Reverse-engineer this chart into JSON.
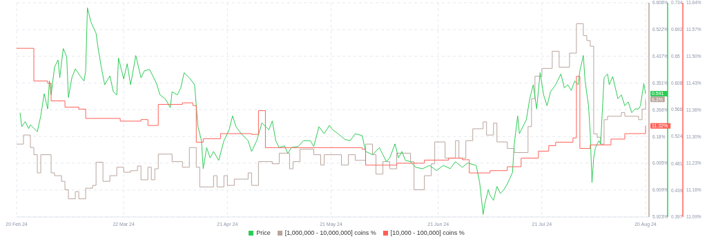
{
  "chart_data": {
    "type": "line",
    "xlim": [
      "2024-02-20",
      "2024-08-21"
    ],
    "xticks": [
      {
        "value": "2024-02-20",
        "label": "20 Feb 24"
      },
      {
        "value": "2024-03-22",
        "label": "22 Mar 24"
      },
      {
        "value": "2024-04-21",
        "label": "21 Apr 24"
      },
      {
        "value": "2024-05-21",
        "label": "21 May 24"
      },
      {
        "value": "2024-06-21",
        "label": "21 Jun 24"
      },
      {
        "value": "2024-07-21",
        "label": "21 Jul 24"
      },
      {
        "value": "2024-08-20",
        "label": "20 Aug 24"
      }
    ],
    "ylim": [
      5.923,
      6.608
    ],
    "yticks": [
      {
        "value": 5.923,
        "label": "5.923%"
      },
      {
        "value": 6.009,
        "label": "6.009%"
      },
      {
        "value": 6.095,
        "label": "6.095%"
      },
      {
        "value": 6.18,
        "label": "6.18%"
      },
      {
        "value": 6.266,
        "label": "6.266%"
      },
      {
        "value": 6.351,
        "label": "6.351%"
      },
      {
        "value": 6.437,
        "label": "6.437%"
      },
      {
        "value": 6.522,
        "label": "6.522%"
      },
      {
        "value": 6.608,
        "label": "6.608%"
      }
    ],
    "y2lim": [
      0.397,
      0.734
    ],
    "y2ticks": [
      0.397,
      0.439,
      0.481,
      0.524,
      0.566,
      0.608,
      0.65,
      0.692,
      0.734
    ],
    "y3lim": [
      11.09,
      11.64
    ],
    "y3ticks": [
      {
        "value": 11.09,
        "label": "11.09%"
      },
      {
        "value": 11.159,
        "label": "11.16%"
      },
      {
        "value": 11.228,
        "label": "11.23%"
      },
      {
        "value": 11.296,
        "label": "11.30%"
      },
      {
        "value": 11.365,
        "label": "11.36%"
      },
      {
        "value": 11.434,
        "label": "11.43%"
      },
      {
        "value": 11.503,
        "label": "11.50%"
      },
      {
        "value": 11.571,
        "label": "11.57%"
      },
      {
        "value": 11.64,
        "label": "11.64%"
      }
    ],
    "grid": true,
    "legend": "bottom",
    "series": [
      {
        "name": "[1,000,000 - 10,000,000] coins %",
        "color": "#b8a49c",
        "type": "step",
        "axis": "y",
        "x": [
          "2024-02-20",
          "2024-02-22",
          "2024-02-24",
          "2024-02-25",
          "2024-02-26",
          "2024-02-27",
          "2024-03-01",
          "2024-03-02",
          "2024-03-04",
          "2024-03-05",
          "2024-03-06",
          "2024-03-08",
          "2024-03-09",
          "2024-03-11",
          "2024-03-13",
          "2024-03-14",
          "2024-03-16",
          "2024-03-18",
          "2024-03-20",
          "2024-03-22",
          "2024-03-24",
          "2024-03-26",
          "2024-03-27",
          "2024-03-29",
          "2024-03-30",
          "2024-03-31",
          "2024-04-01",
          "2024-04-05",
          "2024-04-08",
          "2024-04-10",
          "2024-04-12",
          "2024-04-13",
          "2024-04-17",
          "2024-04-18",
          "2024-04-20",
          "2024-04-21",
          "2024-04-23",
          "2024-04-27",
          "2024-04-28",
          "2024-04-30",
          "2024-05-04",
          "2024-05-06",
          "2024-05-09",
          "2024-05-10",
          "2024-05-12",
          "2024-05-16",
          "2024-05-18",
          "2024-05-19",
          "2024-05-24",
          "2024-05-26",
          "2024-05-28",
          "2024-05-31",
          "2024-06-02",
          "2024-06-03",
          "2024-06-05",
          "2024-06-07",
          "2024-06-09",
          "2024-06-13",
          "2024-06-14",
          "2024-06-17",
          "2024-06-19",
          "2024-06-20",
          "2024-06-23",
          "2024-06-26",
          "2024-06-27",
          "2024-06-29",
          "2024-07-01",
          "2024-07-04",
          "2024-07-05",
          "2024-07-07",
          "2024-07-08",
          "2024-07-11",
          "2024-07-13",
          "2024-07-17",
          "2024-07-18",
          "2024-07-19",
          "2024-07-21",
          "2024-07-24",
          "2024-07-26",
          "2024-07-29",
          "2024-07-31",
          "2024-08-02",
          "2024-08-03",
          "2024-08-04",
          "2024-08-05",
          "2024-08-06",
          "2024-08-07",
          "2024-08-08",
          "2024-08-09",
          "2024-08-13",
          "2024-08-14",
          "2024-08-18",
          "2024-08-19",
          "2024-08-20"
        ],
        "values": [
          6.156,
          6.185,
          6.145,
          6.122,
          6.064,
          6.122,
          6.064,
          6.055,
          6.037,
          6.01,
          5.981,
          6.004,
          5.981,
          6.015,
          6.024,
          6.098,
          6.037,
          6.055,
          6.082,
          6.066,
          6.071,
          6.086,
          6.042,
          6.082,
          6.042,
          6.077,
          6.124,
          6.1,
          6.082,
          6.145,
          6.082,
          6.019,
          6.055,
          6.019,
          6.055,
          6.024,
          6.044,
          6.064,
          6.024,
          6.1,
          6.093,
          6.127,
          6.077,
          6.1,
          6.14,
          6.122,
          6.089,
          6.122,
          6.089,
          6.122,
          6.104,
          6.156,
          6.122,
          6.06,
          6.1,
          6.077,
          6.127,
          6.1,
          6.01,
          6.055,
          6.093,
          6.163,
          6.111,
          6.167,
          6.111,
          6.167,
          6.205,
          6.227,
          6.185,
          6.223,
          6.163,
          6.142,
          6.129,
          6.212,
          6.301,
          6.373,
          6.398,
          6.453,
          6.402,
          6.447,
          6.541,
          6.503,
          6.487,
          6.469,
          6.189,
          6.178,
          6.156,
          6.234,
          6.245,
          6.257,
          6.245,
          6.234,
          6.268,
          6.299
        ],
        "value_labels": [
          null,
          null,
          null,
          null,
          null,
          null,
          null,
          null,
          null,
          null,
          null,
          null,
          null,
          null,
          null,
          null,
          null,
          null,
          null,
          null,
          null,
          null,
          null,
          null,
          null,
          null,
          null,
          null,
          null,
          null,
          null,
          null,
          null,
          null,
          null,
          null,
          null,
          null,
          null,
          null,
          null,
          null,
          null,
          null,
          null,
          null,
          null,
          null,
          null,
          null,
          null,
          null,
          null,
          null,
          null,
          null,
          null,
          null,
          null,
          null,
          null,
          null,
          null,
          null,
          null,
          null,
          null,
          null,
          null,
          null,
          null,
          null,
          null,
          null,
          null,
          null,
          null,
          null,
          null,
          null,
          null,
          null,
          null,
          null,
          null,
          null,
          null,
          null,
          null,
          null,
          null,
          null,
          null,
          "6.3%"
        ]
      },
      {
        "name": "Price",
        "color": "#2ecc55",
        "type": "line",
        "axis": "y2",
        "x": [
          "2024-02-21T00:00",
          "2024-02-21T12:00",
          "2024-02-22T12:00",
          "2024-02-23T12:00",
          "2024-02-24T00:00",
          "2024-02-26T00:00",
          "2024-02-27T00:00",
          "2024-02-28T00:00",
          "2024-02-29T00:00",
          "2024-02-29T12:00",
          "2024-03-01T00:00",
          "2024-03-02T00:00",
          "2024-03-03T00:00",
          "2024-03-03T12:00",
          "2024-03-04T12:00",
          "2024-03-05T12:00",
          "2024-03-06T00:00",
          "2024-03-07T00:00",
          "2024-03-08T00:00",
          "2024-03-09T12:00",
          "2024-03-10T12:00",
          "2024-03-11T00:00",
          "2024-03-11T12:00",
          "2024-03-12T12:00",
          "2024-03-14T00:00",
          "2024-03-14T12:00",
          "2024-03-15T12:00",
          "2024-03-16T12:00",
          "2024-03-18T00:00",
          "2024-03-19T00:00",
          "2024-03-20T00:00",
          "2024-03-20T12:00",
          "2024-03-22T00:00",
          "2024-03-23T00:00",
          "2024-03-24T00:00",
          "2024-03-25T12:00",
          "2024-03-27T00:00",
          "2024-03-28T00:00",
          "2024-03-29T12:00",
          "2024-03-31T12:00",
          "2024-04-01T12:00",
          "2024-04-03T00:00",
          "2024-04-04T12:00",
          "2024-04-05T00:00",
          "2024-04-06T12:00",
          "2024-04-07T12:00",
          "2024-04-08T12:00",
          "2024-04-10T00:00",
          "2024-04-11T12:00",
          "2024-04-12T12:00",
          "2024-04-13T12:00",
          "2024-04-14T00:00",
          "2024-04-15T00:00",
          "2024-04-16T00:00",
          "2024-04-17T00:00",
          "2024-04-18T12:00",
          "2024-04-20T00:00",
          "2024-04-21T12:00",
          "2024-04-22T12:00",
          "2024-04-23T12:00",
          "2024-04-25T00:00",
          "2024-04-27T00:00",
          "2024-04-28T00:00",
          "2024-04-29T12:00",
          "2024-05-01T00:00",
          "2024-05-03T00:00",
          "2024-05-04T00:00",
          "2024-05-05T00:00",
          "2024-05-06T00:00",
          "2024-05-07T12:00",
          "2024-05-08T12:00",
          "2024-05-09T12:00",
          "2024-05-11T12:00",
          "2024-05-13T00:00",
          "2024-05-15T00:00",
          "2024-05-16T00:00",
          "2024-05-17T12:00",
          "2024-05-19T00:00",
          "2024-05-20T12:00",
          "2024-05-21T12:00",
          "2024-05-23T00:00",
          "2024-05-25T00:00",
          "2024-05-26T12:00",
          "2024-05-28T00:00",
          "2024-05-30T00:00",
          "2024-05-31T00:00",
          "2024-06-02T00:00",
          "2024-06-04T00:00",
          "2024-06-05T00:00",
          "2024-06-06T00:00",
          "2024-06-07T00:00",
          "2024-06-08T12:00",
          "2024-06-09T12:00",
          "2024-06-10T12:00",
          "2024-06-11T12:00",
          "2024-06-13T00:00",
          "2024-06-14T12:00",
          "2024-06-16T12:00",
          "2024-06-18T12:00",
          "2024-06-20T12:00",
          "2024-06-22T12:00",
          "2024-06-24T12:00",
          "2024-06-26T00:00",
          "2024-06-28T00:00",
          "2024-06-29T12:00",
          "2024-07-02T00:00",
          "2024-07-03T00:00",
          "2024-07-04T00:00",
          "2024-07-04T12:00",
          "2024-07-05T12:00",
          "2024-07-06T00:00",
          "2024-07-07T00:00",
          "2024-07-08T00:00",
          "2024-07-09T00:00",
          "2024-07-10T00:00",
          "2024-07-11T00:00",
          "2024-07-12T12:00",
          "2024-07-13T00:00",
          "2024-07-14T00:00",
          "2024-07-14T12:00",
          "2024-07-15T12:00",
          "2024-07-16T12:00",
          "2024-07-17T12:00",
          "2024-07-18T12:00",
          "2024-07-19T12:00",
          "2024-07-20T12:00",
          "2024-07-21T12:00",
          "2024-07-22T12:00",
          "2024-07-23T12:00",
          "2024-07-25T00:00",
          "2024-07-26T12:00",
          "2024-07-27T12:00",
          "2024-07-28T12:00",
          "2024-07-29T12:00",
          "2024-07-30T12:00",
          "2024-07-31T12:00",
          "2024-08-01T00:00",
          "2024-08-02T00:00",
          "2024-08-02T12:00",
          "2024-08-03T12:00",
          "2024-08-04T00:00",
          "2024-08-04T12:00",
          "2024-08-05T00:00",
          "2024-08-05T12:00",
          "2024-08-06T12:00",
          "2024-08-07T00:00",
          "2024-08-08T00:00",
          "2024-08-09T00:00",
          "2024-08-09T12:00",
          "2024-08-10T12:00",
          "2024-08-12T00:00",
          "2024-08-13T00:00",
          "2024-08-14T00:00",
          "2024-08-15T00:00",
          "2024-08-16T00:00",
          "2024-08-17T00:00",
          "2024-08-18T00:00",
          "2024-08-18T12:00",
          "2024-08-19T00:00",
          "2024-08-19T12:00",
          "2024-08-20T00:00"
        ],
        "values": [
          0.561,
          0.539,
          0.547,
          0.536,
          0.542,
          0.531,
          0.556,
          0.591,
          0.567,
          0.611,
          0.589,
          0.633,
          0.644,
          0.616,
          0.662,
          0.649,
          0.585,
          0.616,
          0.63,
          0.618,
          0.611,
          0.627,
          0.726,
          0.704,
          0.686,
          0.666,
          0.633,
          0.605,
          0.619,
          0.594,
          0.589,
          0.647,
          0.614,
          0.638,
          0.605,
          0.651,
          0.616,
          0.627,
          0.629,
          0.607,
          0.589,
          0.583,
          0.569,
          0.594,
          0.589,
          0.6,
          0.624,
          0.616,
          0.605,
          0.539,
          0.517,
          0.473,
          0.506,
          0.49,
          0.5,
          0.486,
          0.517,
          0.534,
          0.556,
          0.539,
          0.528,
          0.517,
          0.5,
          0.517,
          0.545,
          0.534,
          0.548,
          0.517,
          0.506,
          0.509,
          0.497,
          0.506,
          0.508,
          0.517,
          0.517,
          0.508,
          0.539,
          0.528,
          0.541,
          0.534,
          0.528,
          0.519,
          0.517,
          0.528,
          0.525,
          0.5,
          0.495,
          0.506,
          0.495,
          0.484,
          0.49,
          0.512,
          0.49,
          0.5,
          0.486,
          0.484,
          0.475,
          0.473,
          0.478,
          0.47,
          0.478,
          0.473,
          0.484,
          0.475,
          0.482,
          0.478,
          0.451,
          0.401,
          0.418,
          0.44,
          0.431,
          0.423,
          0.445,
          0.434,
          0.44,
          0.449,
          0.467,
          0.511,
          0.556,
          0.528,
          0.539,
          0.55,
          0.583,
          0.605,
          0.567,
          0.624,
          0.589,
          0.572,
          0.594,
          0.605,
          0.622,
          0.6,
          0.605,
          0.596,
          0.611,
          0.605,
          0.627,
          0.651,
          0.611,
          0.572,
          0.528,
          0.451,
          0.49,
          0.506,
          0.517,
          0.512,
          0.616,
          0.622,
          0.605,
          0.618,
          0.583,
          0.589,
          0.572,
          0.578,
          0.561,
          0.567,
          0.567,
          0.572,
          0.589,
          0.607,
          0.591
        ],
        "value_labels": [
          null,
          null,
          null,
          null,
          null,
          null,
          null,
          null,
          null,
          null,
          null,
          null,
          null,
          null,
          null,
          null,
          null,
          null,
          null,
          null,
          null,
          null,
          null,
          null,
          null,
          null,
          null,
          null,
          null,
          null,
          null,
          null,
          null,
          null,
          null,
          null,
          null,
          null,
          null,
          null,
          null,
          null,
          null,
          null,
          null,
          null,
          null,
          null,
          null,
          null,
          null,
          null,
          null,
          null,
          null,
          null,
          null,
          null,
          null,
          null,
          null,
          null,
          null,
          null,
          null,
          null,
          null,
          null,
          null,
          null,
          null,
          null,
          null,
          null,
          null,
          null,
          null,
          null,
          null,
          null,
          null,
          null,
          null,
          null,
          null,
          null,
          null,
          null,
          null,
          null,
          null,
          null,
          null,
          null,
          null,
          null,
          null,
          null,
          null,
          null,
          null,
          null,
          null,
          null,
          null,
          null,
          null,
          null,
          null,
          null,
          null,
          null,
          null,
          null,
          null,
          null,
          null,
          null,
          null,
          null,
          null,
          null,
          null,
          null,
          null,
          null,
          null,
          null,
          null,
          null,
          null,
          null,
          null,
          null,
          null,
          null,
          null,
          null,
          null,
          null,
          null,
          null,
          null,
          null,
          null,
          null,
          null,
          null,
          null,
          null,
          null,
          null,
          null,
          null,
          null,
          null,
          null,
          null,
          null,
          null,
          "0.591"
        ]
      },
      {
        "name": "[10,000 - 100,000] coins %",
        "color": "#ff5f57",
        "type": "step",
        "axis": "y3",
        "x": [
          "2024-02-20",
          "2024-02-25",
          "2024-02-29",
          "2024-03-01",
          "2024-03-05",
          "2024-03-09",
          "2024-03-11",
          "2024-03-21",
          "2024-03-27",
          "2024-03-29",
          "2024-04-01",
          "2024-04-08",
          "2024-04-11",
          "2024-04-12",
          "2024-04-14",
          "2024-04-19",
          "2024-04-28",
          "2024-04-30",
          "2024-05-02",
          "2024-05-30",
          "2024-05-31",
          "2024-06-09",
          "2024-06-17",
          "2024-06-24",
          "2024-06-28",
          "2024-06-30",
          "2024-07-06",
          "2024-07-11",
          "2024-07-15",
          "2024-07-20",
          "2024-07-23",
          "2024-07-25",
          "2024-07-30",
          "2024-07-31",
          "2024-08-01",
          "2024-08-04",
          "2024-08-10",
          "2024-08-14",
          "2024-08-20"
        ],
        "values": [
          11.523,
          11.439,
          11.433,
          11.388,
          11.372,
          11.367,
          11.343,
          11.336,
          11.34,
          11.325,
          11.379,
          11.383,
          11.376,
          11.282,
          11.291,
          11.304,
          11.302,
          11.363,
          11.268,
          11.264,
          11.223,
          11.228,
          11.236,
          11.241,
          11.237,
          11.203,
          11.209,
          11.219,
          11.241,
          11.259,
          11.273,
          11.282,
          11.293,
          11.451,
          11.266,
          11.275,
          11.29,
          11.304,
          11.324
        ],
        "value_labels": [
          null,
          null,
          null,
          null,
          null,
          null,
          null,
          null,
          null,
          null,
          null,
          null,
          null,
          null,
          null,
          null,
          null,
          null,
          null,
          null,
          null,
          null,
          null,
          null,
          null,
          null,
          null,
          null,
          null,
          null,
          null,
          null,
          null,
          null,
          null,
          null,
          null,
          null,
          "11.32%"
        ]
      }
    ]
  }
}
